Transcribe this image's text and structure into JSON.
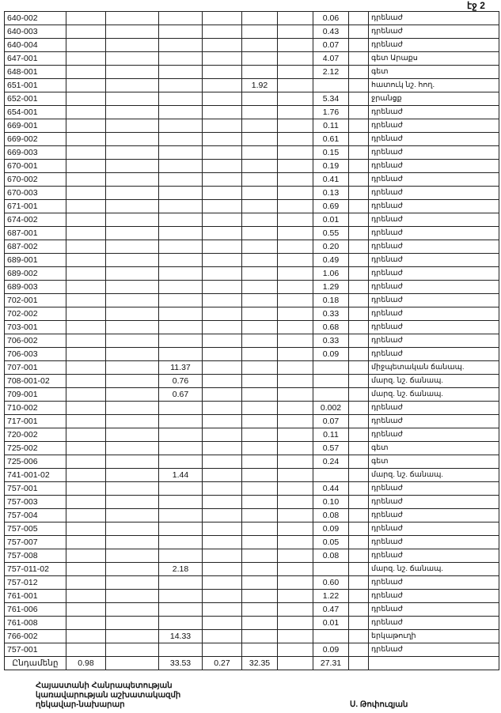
{
  "page_label": "էջ 2",
  "rows": [
    {
      "id": "640-002",
      "col": "G",
      "value": "0.06",
      "desc": "դրենաժ"
    },
    {
      "id": "640-003",
      "col": "G",
      "value": "0.43",
      "desc": "դրենաժ"
    },
    {
      "id": "640-004",
      "col": "G",
      "value": "0.07",
      "desc": "դրենաժ"
    },
    {
      "id": "647-001",
      "col": "G",
      "value": "4.07",
      "desc": "գետ Արաքս"
    },
    {
      "id": "648-001",
      "col": "G",
      "value": "2.12",
      "desc": "գետ"
    },
    {
      "id": "651-001",
      "col": "E",
      "value": "1.92",
      "desc": "հատուկ նշ. հող."
    },
    {
      "id": "652-001",
      "col": "G",
      "value": "5.34",
      "desc": "ջրանցք"
    },
    {
      "id": "654-001",
      "col": "G",
      "value": "1.76",
      "desc": "դրենաժ"
    },
    {
      "id": "669-001",
      "col": "G",
      "value": "0.11",
      "desc": "դրենաժ"
    },
    {
      "id": "669-002",
      "col": "G",
      "value": "0.61",
      "desc": "դրենաժ"
    },
    {
      "id": "669-003",
      "col": "G",
      "value": "0.15",
      "desc": "դրենաժ"
    },
    {
      "id": "670-001",
      "col": "G",
      "value": "0.19",
      "desc": "դրենաժ"
    },
    {
      "id": "670-002",
      "col": "G",
      "value": "0.41",
      "desc": "դրենաժ"
    },
    {
      "id": "670-003",
      "col": "G",
      "value": "0.13",
      "desc": "դրենաժ"
    },
    {
      "id": "671-001",
      "col": "G",
      "value": "0.69",
      "desc": "դրենաժ"
    },
    {
      "id": "674-002",
      "col": "G",
      "value": "0.01",
      "desc": "դրենաժ"
    },
    {
      "id": "687-001",
      "col": "G",
      "value": "0.55",
      "desc": "դրենաժ"
    },
    {
      "id": "687-002",
      "col": "G",
      "value": "0.20",
      "desc": "դրենաժ"
    },
    {
      "id": "689-001",
      "col": "G",
      "value": "0.49",
      "desc": "դրենաժ"
    },
    {
      "id": "689-002",
      "col": "G",
      "value": "1.06",
      "desc": "դրենաժ"
    },
    {
      "id": "689-003",
      "col": "G",
      "value": "1.29",
      "desc": "դրենաժ"
    },
    {
      "id": "702-001",
      "col": "G",
      "value": "0.18",
      "desc": "դրենաժ"
    },
    {
      "id": "702-002",
      "col": "G",
      "value": "0.33",
      "desc": "դրենաժ"
    },
    {
      "id": "703-001",
      "col": "G",
      "value": "0.68",
      "desc": "դրենաժ"
    },
    {
      "id": "706-002",
      "col": "G",
      "value": "0.33",
      "desc": "դրենաժ"
    },
    {
      "id": "706-003",
      "col": "G",
      "value": "0.09",
      "desc": "դրենաժ"
    },
    {
      "id": "707-001",
      "col": "C",
      "value": "11.37",
      "desc": "միջպետական ճանապ."
    },
    {
      "id": "708-001-02",
      "col": "C",
      "value": "0.76",
      "desc": "մարզ. նշ. ճանապ."
    },
    {
      "id": "709-001",
      "col": "C",
      "value": "0.67",
      "desc": "մարզ. նշ. ճանապ."
    },
    {
      "id": "710-002",
      "col": "G",
      "value": "0.002",
      "desc": "դրենաժ"
    },
    {
      "id": "717-001",
      "col": "G",
      "value": "0.07",
      "desc": "դրենաժ"
    },
    {
      "id": "720-002",
      "col": "G",
      "value": "0.11",
      "desc": "դրենաժ"
    },
    {
      "id": "725-002",
      "col": "G",
      "value": "0.57",
      "desc": "գետ"
    },
    {
      "id": "725-006",
      "col": "G",
      "value": "0.24",
      "desc": "գետ"
    },
    {
      "id": "741-001-02",
      "col": "C",
      "value": "1.44",
      "desc": "մարզ. նշ. ճանապ."
    },
    {
      "id": "757-001",
      "col": "G",
      "value": "0.44",
      "desc": "դրենաժ"
    },
    {
      "id": "757-003",
      "col": "G",
      "value": "0.10",
      "desc": "դրենաժ"
    },
    {
      "id": "757-004",
      "col": "G",
      "value": "0.08",
      "desc": "դրենաժ"
    },
    {
      "id": "757-005",
      "col": "G",
      "value": "0.09",
      "desc": "դրենաժ"
    },
    {
      "id": "757-007",
      "col": "G",
      "value": "0.05",
      "desc": "դրենաժ"
    },
    {
      "id": "757-008",
      "col": "G",
      "value": "0.08",
      "desc": "դրենաժ"
    },
    {
      "id": "757-011-02",
      "col": "C",
      "value": "2.18",
      "desc": "մարզ. նշ. ճանապ."
    },
    {
      "id": "757-012",
      "col": "G",
      "value": "0.60",
      "desc": "դրենաժ"
    },
    {
      "id": "761-001",
      "col": "G",
      "value": "1.22",
      "desc": "դրենաժ"
    },
    {
      "id": "761-006",
      "col": "G",
      "value": "0.47",
      "desc": "դրենաժ"
    },
    {
      "id": "761-008",
      "col": "G",
      "value": "0.01",
      "desc": "դրենաժ"
    },
    {
      "id": "766-002",
      "col": "C",
      "value": "14.33",
      "desc": "երկաթուղի"
    },
    {
      "id": "757-001",
      "col": "G",
      "value": "0.09",
      "desc": "դրենաժ"
    }
  ],
  "total": {
    "label": "Ընդամենը",
    "A": "0.98",
    "B": "",
    "C": "33.53",
    "D": "0.27",
    "E": "32.35",
    "F": "",
    "G": "27.31",
    "H": "",
    "desc": ""
  },
  "signature": {
    "line1": "Հայաստանի Հանրապետության",
    "line2": "կառավարության աշխատակազմի",
    "line3": "ղեկավար-նախարար",
    "name": "Ս. Թոփուզյան"
  }
}
